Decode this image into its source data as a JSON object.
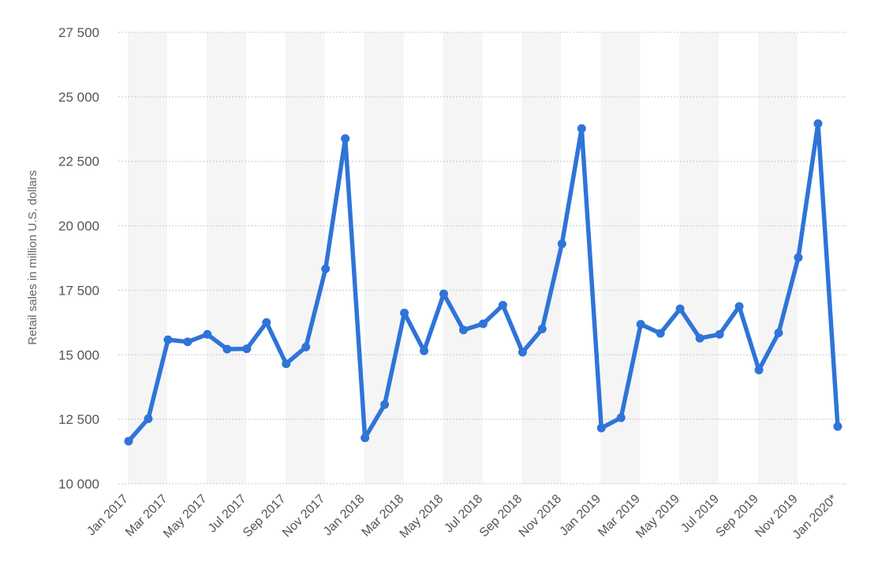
{
  "chart_data": {
    "type": "line",
    "title": "",
    "xlabel": "",
    "ylabel": "Retail sales in million U.S. dollars",
    "ylim": [
      10000,
      27500
    ],
    "yticks": [
      10000,
      12500,
      15000,
      17500,
      20000,
      22500,
      25000,
      27500
    ],
    "ytick_labels": [
      "10 000",
      "12 500",
      "15 000",
      "17 500",
      "20 000",
      "22 500",
      "25 000",
      "27 500"
    ],
    "x": [
      "Jan 2017",
      "Feb 2017",
      "Mar 2017",
      "Apr 2017",
      "May 2017",
      "Jun 2017",
      "Jul 2017",
      "Aug 2017",
      "Sep 2017",
      "Oct 2017",
      "Nov 2017",
      "Dec 2017",
      "Jan 2018",
      "Feb 2018",
      "Mar 2018",
      "Apr 2018",
      "May 2018",
      "Jun 2018",
      "Jul 2018",
      "Aug 2018",
      "Sep 2018",
      "Oct 2018",
      "Nov 2018",
      "Dec 2018",
      "Jan 2019",
      "Feb 2019",
      "Mar 2019",
      "Apr 2019",
      "May 2019",
      "Jun 2019",
      "Jul 2019",
      "Aug 2019",
      "Sep 2019",
      "Oct 2019",
      "Nov 2019",
      "Dec 2019",
      "Jan 2020*"
    ],
    "xtick_labels": [
      "Jan 2017",
      "Mar 2017",
      "May 2017",
      "Jul 2017",
      "Sep 2017",
      "Nov 2017",
      "Jan 2018",
      "Mar 2018",
      "May 2018",
      "Jul 2018",
      "Sep 2018",
      "Nov 2018",
      "Jan 2019",
      "Mar 2019",
      "May 2019",
      "Jul 2019",
      "Sep 2019",
      "Nov 2019",
      "Jan 2020*"
    ],
    "series": [
      {
        "name": "",
        "color": "#2f74d8",
        "values": [
          11650,
          12520,
          15580,
          15500,
          15790,
          15220,
          15230,
          16250,
          14650,
          15300,
          18330,
          23380,
          11780,
          13070,
          16620,
          15150,
          17360,
          15960,
          16200,
          16920,
          15100,
          16000,
          19300,
          23770,
          12160,
          12560,
          16180,
          15830,
          16780,
          15640,
          15790,
          16870,
          14410,
          15850,
          18770,
          23960,
          12220
        ]
      }
    ],
    "grid": true,
    "legend": "none"
  }
}
